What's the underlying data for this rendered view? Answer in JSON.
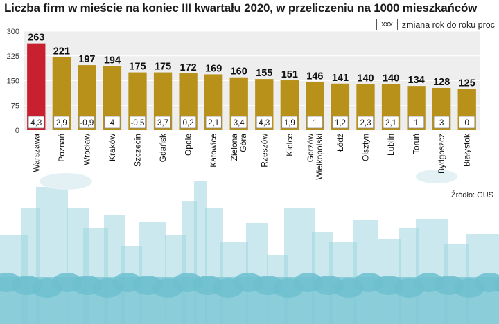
{
  "chart_data": {
    "type": "bar",
    "title": "Liczba firm w mieście na koniec III kwartału 2020, w przeliczeniu na 1000 mieszkańców",
    "legend": {
      "box_label": "xxx",
      "text": "zmiana rok do roku  proc"
    },
    "source": "Źródło: GUS",
    "ylim": [
      0,
      300
    ],
    "yticks": [
      0,
      75,
      150,
      225,
      300
    ],
    "categories": [
      "Warszawa",
      "Poznań",
      "Wrocław",
      "Kraków",
      "Szczecin",
      "Gdańsk",
      "Opole",
      "Katowice",
      "Zielona Góra",
      "Rzeszów",
      "Kielce",
      "Gorzów Wielkopolski",
      "Łódź",
      "Olsztyn",
      "Lublin",
      "Toruń",
      "Bydgoszcz",
      "Białystok"
    ],
    "values": [
      263,
      221,
      197,
      194,
      175,
      175,
      172,
      169,
      160,
      155,
      151,
      146,
      141,
      140,
      140,
      134,
      128,
      125
    ],
    "changes": [
      "4,3",
      "2,9",
      "-0,9",
      "4",
      "-0,5",
      "3,7",
      "0,2",
      "2,1",
      "3,4",
      "4,3",
      "1,9",
      "1",
      "1,2",
      "2,3",
      "2,1",
      "1",
      "3",
      "0"
    ],
    "colors": {
      "highlight": "#c8202e",
      "bar": "#b8911a",
      "grid_bg": "#eeeeee",
      "skyline": "#9fd6e0"
    }
  }
}
